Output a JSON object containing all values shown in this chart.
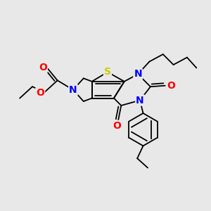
{
  "bg_color": "#e8e8e8",
  "atom_colors": {
    "N": "#0000ff",
    "O": "#ff0000",
    "S": "#cccc00"
  },
  "bond_color": "#000000",
  "bond_width": 1.3,
  "font_size_atom": 10
}
